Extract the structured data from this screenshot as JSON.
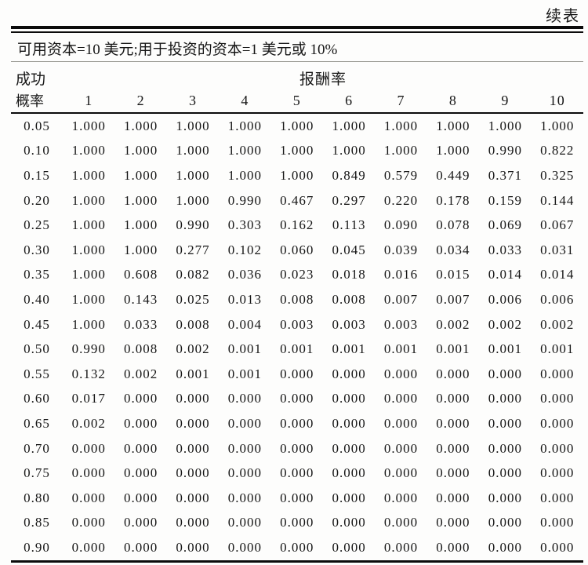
{
  "page": {
    "continued_label": "续表",
    "caption": "可用资本=10 美元;用于投资的资本=1 美元或 10%"
  },
  "table": {
    "corner_title_line1": "成功",
    "corner_title_line2": "概率",
    "group_header": "报酬率",
    "columns": [
      "1",
      "2",
      "3",
      "4",
      "5",
      "6",
      "7",
      "8",
      "9",
      "10"
    ],
    "rows": [
      {
        "probability": "0.05",
        "values": [
          "1.000",
          "1.000",
          "1.000",
          "1.000",
          "1.000",
          "1.000",
          "1.000",
          "1.000",
          "1.000",
          "1.000"
        ]
      },
      {
        "probability": "0.10",
        "values": [
          "1.000",
          "1.000",
          "1.000",
          "1.000",
          "1.000",
          "1.000",
          "1.000",
          "1.000",
          "0.990",
          "0.822"
        ]
      },
      {
        "probability": "0.15",
        "values": [
          "1.000",
          "1.000",
          "1.000",
          "1.000",
          "1.000",
          "0.849",
          "0.579",
          "0.449",
          "0.371",
          "0.325"
        ]
      },
      {
        "probability": "0.20",
        "values": [
          "1.000",
          "1.000",
          "1.000",
          "0.990",
          "0.467",
          "0.297",
          "0.220",
          "0.178",
          "0.159",
          "0.144"
        ]
      },
      {
        "probability": "0.25",
        "values": [
          "1.000",
          "1.000",
          "0.990",
          "0.303",
          "0.162",
          "0.113",
          "0.090",
          "0.078",
          "0.069",
          "0.067"
        ]
      },
      {
        "probability": "0.30",
        "values": [
          "1.000",
          "1.000",
          "0.277",
          "0.102",
          "0.060",
          "0.045",
          "0.039",
          "0.034",
          "0.033",
          "0.031"
        ]
      },
      {
        "probability": "0.35",
        "values": [
          "1.000",
          "0.608",
          "0.082",
          "0.036",
          "0.023",
          "0.018",
          "0.016",
          "0.015",
          "0.014",
          "0.014"
        ]
      },
      {
        "probability": "0.40",
        "values": [
          "1.000",
          "0.143",
          "0.025",
          "0.013",
          "0.008",
          "0.008",
          "0.007",
          "0.007",
          "0.006",
          "0.006"
        ]
      },
      {
        "probability": "0.45",
        "values": [
          "1.000",
          "0.033",
          "0.008",
          "0.004",
          "0.003",
          "0.003",
          "0.003",
          "0.002",
          "0.002",
          "0.002"
        ]
      },
      {
        "probability": "0.50",
        "values": [
          "0.990",
          "0.008",
          "0.002",
          "0.001",
          "0.001",
          "0.001",
          "0.001",
          "0.001",
          "0.001",
          "0.001"
        ]
      },
      {
        "probability": "0.55",
        "values": [
          "0.132",
          "0.002",
          "0.001",
          "0.001",
          "0.000",
          "0.000",
          "0.000",
          "0.000",
          "0.000",
          "0.000"
        ]
      },
      {
        "probability": "0.60",
        "values": [
          "0.017",
          "0.000",
          "0.000",
          "0.000",
          "0.000",
          "0.000",
          "0.000",
          "0.000",
          "0.000",
          "0.000"
        ]
      },
      {
        "probability": "0.65",
        "values": [
          "0.002",
          "0.000",
          "0.000",
          "0.000",
          "0.000",
          "0.000",
          "0.000",
          "0.000",
          "0.000",
          "0.000"
        ]
      },
      {
        "probability": "0.70",
        "values": [
          "0.000",
          "0.000",
          "0.000",
          "0.000",
          "0.000",
          "0.000",
          "0.000",
          "0.000",
          "0.000",
          "0.000"
        ]
      },
      {
        "probability": "0.75",
        "values": [
          "0.000",
          "0.000",
          "0.000",
          "0.000",
          "0.000",
          "0.000",
          "0.000",
          "0.000",
          "0.000",
          "0.000"
        ]
      },
      {
        "probability": "0.80",
        "values": [
          "0.000",
          "0.000",
          "0.000",
          "0.000",
          "0.000",
          "0.000",
          "0.000",
          "0.000",
          "0.000",
          "0.000"
        ]
      },
      {
        "probability": "0.85",
        "values": [
          "0.000",
          "0.000",
          "0.000",
          "0.000",
          "0.000",
          "0.000",
          "0.000",
          "0.000",
          "0.000",
          "0.000"
        ]
      },
      {
        "probability": "0.90",
        "values": [
          "0.000",
          "0.000",
          "0.000",
          "0.000",
          "0.000",
          "0.000",
          "0.000",
          "0.000",
          "0.000",
          "0.000"
        ]
      }
    ]
  },
  "colors": {
    "background": "#fdfdfc",
    "text": "#161616",
    "rule": "#0b0b0b",
    "caption_rule": "#979790"
  }
}
